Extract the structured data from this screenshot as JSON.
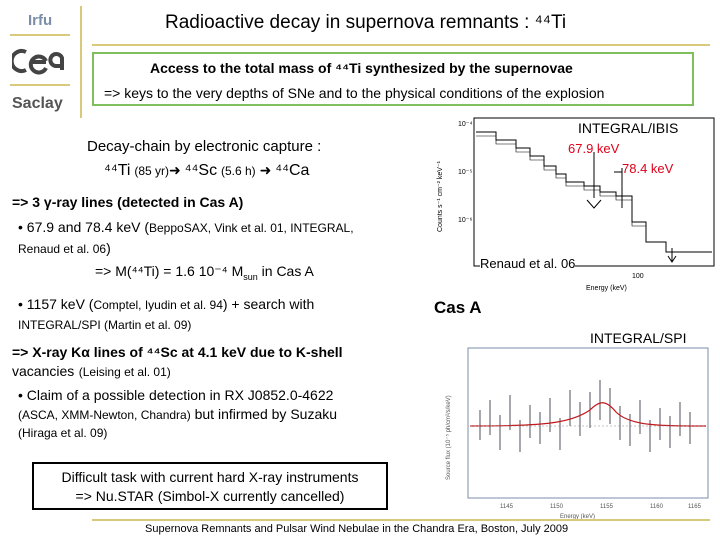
{
  "header": {
    "org": "Irfu",
    "lab": "Saclay",
    "title": "Radioactive decay in supernova remnants : ⁴⁴Ti"
  },
  "green_box": {
    "line1": "Access to the total mass of ⁴⁴Ti synthesized by the supernovae",
    "line2": "=> keys to the very depths of SNe and to the physical conditions of the explosion"
  },
  "plot_ibis": {
    "label": "INTEGRAL/IBIS",
    "line1": "67.9 keV",
    "line2": "78.4 keV",
    "citation": "Renaud et al. 06",
    "source": "Cas A"
  },
  "plot_spi": {
    "label": "INTEGRAL/SPI"
  },
  "decay": {
    "heading": "Decay-chain by electronic capture :",
    "chain_ti": "⁴⁴Ti",
    "chain_ti_t": "(85 yr)",
    "chain_sc": "⁴⁴Sc",
    "chain_sc_t": "(5.6 h)",
    "chain_ca": "⁴⁴Ca"
  },
  "gamma": {
    "heading": "=> 3 γ-ray lines (detected in Cas A)",
    "bullet1_a": "• 67.9 and 78.4 keV (",
    "bullet1_b": "BeppoSAX, Vink et al. 01, INTEGRAL,",
    "bullet1_c": "Renaud et al. 06",
    "bullet1_d": ")",
    "mass": "=> M(⁴⁴Ti) = 1.6 10⁻⁴ M",
    "mass_sub": "sun",
    "mass_end": " in Cas A",
    "bullet2_a": "• 1157 keV (",
    "bullet2_b": "Comptel, Iyudin et al. 94",
    "bullet2_c": ") + search with",
    "bullet2_d": "INTEGRAL/SPI (Martin et al. 09)"
  },
  "xray": {
    "heading": "=> X-ray Kα lines of ⁴⁴Sc at 4.1 keV due to K-shell",
    "heading2": "vacancies",
    "cite": "(Leising et al. 01)",
    "bullet_a": "• Claim of a possible detection in RX J0852.0-4622",
    "bullet_b": "(ASCA, XMM-Newton, Chandra)",
    "bullet_c": " but infirmed by Suzaku",
    "bullet_d": "(Hiraga et al. 09)"
  },
  "conclusion": {
    "line1": "Difficult task with current hard X-ray instruments",
    "line2": "=> Nu.STAR (Simbol-X currently cancelled)"
  },
  "footer": {
    "text": "Supernova Remnants and Pulsar Wind Nebulae in the Chandra Era, Boston, July 2009"
  },
  "colors": {
    "accent_line": "#d9c97a",
    "box_border": "#7fbf5e",
    "energy_label": "#e0001a"
  }
}
